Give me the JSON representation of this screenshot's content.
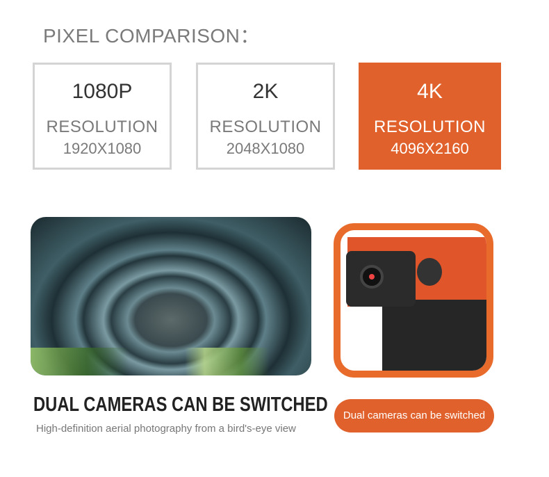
{
  "title": "PIXEL COMPARISON：",
  "options": [
    {
      "name": "1080P",
      "label": "RESOLUTION",
      "value": "1920X1080",
      "selected": false
    },
    {
      "name": "2K",
      "label": "RESOLUTION",
      "value": "2048X1080",
      "selected": false
    },
    {
      "name": "4K",
      "label": "RESOLUTION",
      "value": "4096X2160",
      "selected": true
    }
  ],
  "accent_color": "#e0612b",
  "headline": "DUAL CAMERAS CAN BE SWITCHED",
  "subheadline": "High-definition aerial photography from a bird's-eye view",
  "badge": "Dual cameras can be switched"
}
